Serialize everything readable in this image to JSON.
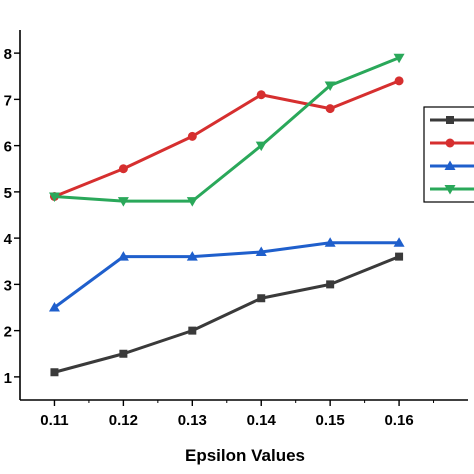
{
  "chart_data": {
    "type": "line",
    "title": "",
    "xlabel": "Epsilon Values",
    "ylabel": "",
    "x": [
      "0.11",
      "0.12",
      "0.13",
      "0.14",
      "0.15",
      "0.16"
    ],
    "xlim": [
      0.105,
      0.17
    ],
    "ylim": [
      0.5,
      8.5
    ],
    "y_ticks": [
      {
        "value": 1,
        "label": "1"
      },
      {
        "value": 2,
        "label": "2"
      },
      {
        "value": 3,
        "label": "3"
      },
      {
        "value": 4,
        "label": "4"
      },
      {
        "value": 5,
        "label": "5"
      },
      {
        "value": 6,
        "label": "6"
      },
      {
        "value": 7,
        "label": "7"
      },
      {
        "value": 8,
        "label": "8"
      }
    ],
    "grid": false,
    "legend": "right",
    "series": [
      {
        "color": "#3a3a3a",
        "marker": "square",
        "values": [
          1.1,
          1.5,
          2.0,
          2.7,
          3.0,
          3.6
        ]
      },
      {
        "color": "#d62f2f",
        "marker": "circle",
        "values": [
          4.9,
          5.5,
          6.2,
          7.1,
          6.8,
          7.4
        ]
      },
      {
        "color": "#1f5fcc",
        "marker": "triangle-up",
        "values": [
          2.5,
          3.6,
          3.6,
          3.7,
          3.9,
          3.9
        ]
      },
      {
        "color": "#2aa85a",
        "marker": "triangle-down",
        "values": [
          4.9,
          4.8,
          4.8,
          6.0,
          7.3,
          7.9
        ]
      }
    ]
  }
}
